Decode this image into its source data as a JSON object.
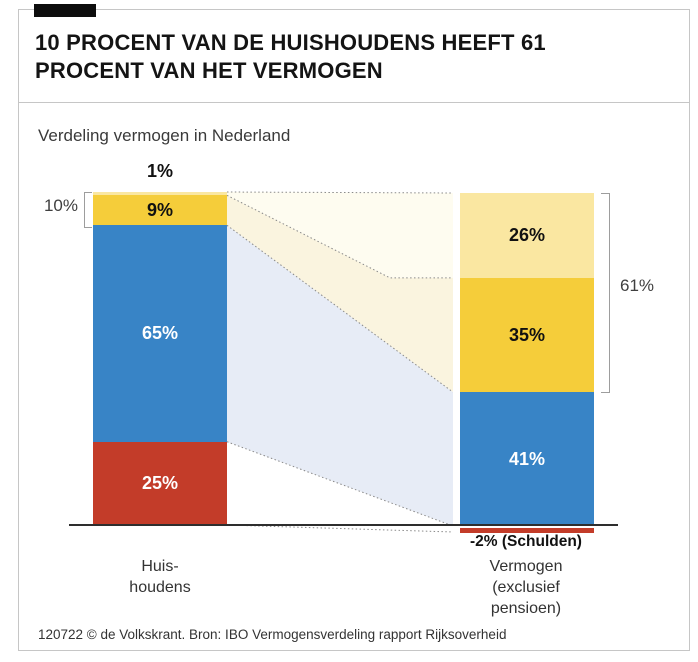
{
  "header": {
    "title": "10 PROCENT VAN DE HUISHOUDENS HEEFT 61 PROCENT VAN HET VERMOGEN",
    "subtitle": "Verdeling vermogen in Nederland"
  },
  "footer": {
    "credit": "120722 © de Volkskrant. Bron: IBO Vermogensverdeling rapport Rijksoverheid"
  },
  "chart_data": {
    "type": "bar",
    "subtype": "stacked-flow",
    "title": "Verdeling vermogen in Nederland",
    "unit": "percent",
    "categories": [
      "Huishoudens",
      "Vermogen (exclusief pensioen)"
    ],
    "bars": [
      {
        "key": "huishoudens",
        "axis_label": "Huis-\nhoudens",
        "segments": [
          {
            "name": "top-1pct",
            "value": 1,
            "label": "1%",
            "label_position": "above",
            "color": "#fae7a1",
            "text_color": "#111111"
          },
          {
            "name": "next-9pct",
            "value": 9,
            "label": "9%",
            "color": "#f5cd3a",
            "text_color": "#111111"
          },
          {
            "name": "middle-65pct",
            "value": 65,
            "label": "65%",
            "color": "#3884c6",
            "text_color": "#ffffff"
          },
          {
            "name": "bottom-25pct",
            "value": 25,
            "label": "25%",
            "color": "#c33c29",
            "text_color": "#ffffff"
          }
        ]
      },
      {
        "key": "vermogen",
        "axis_label": "Vermogen\n(exclusief\npensioen)",
        "segments": [
          {
            "name": "wealth-26pct",
            "value": 26,
            "label": "26%",
            "color": "#fae7a1",
            "text_color": "#111111"
          },
          {
            "name": "wealth-35pct",
            "value": 35,
            "label": "35%",
            "color": "#f5cd3a",
            "text_color": "#111111"
          },
          {
            "name": "wealth-41pct",
            "value": 41,
            "label": "41%",
            "color": "#3884c6",
            "text_color": "#ffffff"
          },
          {
            "name": "schulden",
            "value": -2,
            "label": "-2% (Schulden)",
            "label_position": "below",
            "color": "#c33c29",
            "text_color": "#111111"
          }
        ]
      }
    ],
    "brackets": [
      {
        "side": "left",
        "label": "10%",
        "covers_segments": [
          "top-1pct",
          "next-9pct"
        ]
      },
      {
        "side": "right",
        "label": "61%",
        "covers_segments": [
          "wealth-26pct",
          "wealth-35pct"
        ]
      }
    ],
    "flows": [
      {
        "from": "top-1pct",
        "to": "wealth-26pct",
        "fill": "#fefcf0"
      },
      {
        "from": "next-9pct",
        "to": "wealth-35pct",
        "fill": "#faf4df"
      },
      {
        "from": "middle-65pct",
        "to": "wealth-41pct",
        "fill": "#e7ecf6"
      },
      {
        "from": "bottom-25pct",
        "to": "schulden",
        "fill": null
      }
    ],
    "line_style": {
      "dotted_edge_color": "#8a8a8a",
      "baseline_color": "#2e2e2e"
    }
  }
}
